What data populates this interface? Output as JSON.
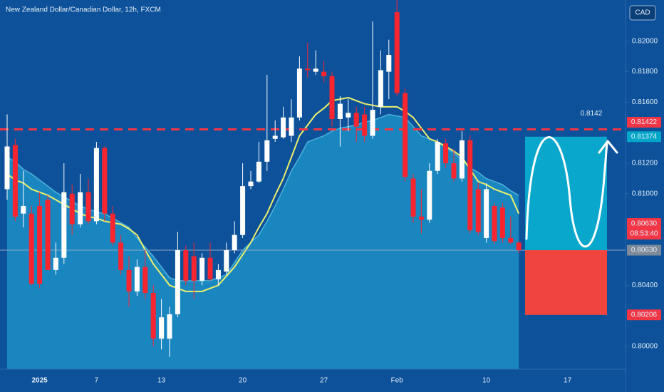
{
  "chart_data": {
    "type": "candlestick",
    "title": "New Zealand Dollar/Canadian Dollar, 12h, FXCM",
    "currency": "CAD",
    "categories": [
      null,
      null,
      null,
      null,
      "2025",
      null,
      null,
      null,
      null,
      null,
      null,
      "7",
      null,
      null,
      null,
      null,
      null,
      null,
      null,
      "13",
      null,
      null,
      null,
      null,
      null,
      null,
      null,
      null,
      null,
      "20",
      null,
      null,
      null,
      null,
      null,
      null,
      null,
      null,
      null,
      "27",
      null,
      null,
      null,
      null,
      null,
      null,
      null,
      null,
      "Feb",
      null,
      null,
      null,
      null,
      null,
      null,
      null,
      null,
      null,
      null,
      "10",
      null,
      null,
      null,
      null,
      null,
      null,
      null,
      null,
      null,
      "17",
      null,
      null,
      null,
      null,
      null,
      null
    ],
    "open": [
      0.8103,
      0.8132,
      0.8087,
      0.8087,
      0.8092,
      0.8096,
      0.805,
      0.8058,
      0.81,
      0.808,
      0.8101,
      0.8082,
      0.813,
      0.8087,
      0.8068,
      0.805,
      0.8036,
      0.8052,
      0.8035,
      0.8005,
      0.8005,
      0.8021,
      0.8063,
      0.8059,
      0.8043,
      0.8058,
      0.8044,
      0.8049,
      0.8063,
      0.8073,
      0.8105,
      0.8108,
      0.8121,
      0.8136,
      0.8137,
      0.8138,
      0.815,
      0.8182,
      0.818,
      0.818,
      0.8177,
      0.8149,
      0.815,
      0.8153,
      0.8152,
      0.8138,
      0.8157,
      0.818,
      0.8219,
      0.8166,
      0.811,
      0.8085,
      0.8083,
      0.8115,
      0.8133,
      0.812,
      0.811,
      0.8135,
      0.8103,
      0.8071,
      0.8092,
      0.8091,
      0.8071,
      0.8068,
      null,
      null,
      null,
      null,
      null,
      null,
      null,
      null,
      null,
      null,
      null,
      null
    ],
    "high": [
      0.8152,
      0.8136,
      0.8115,
      0.8092,
      0.8101,
      0.8099,
      0.8068,
      0.812,
      0.8106,
      0.8113,
      0.811,
      0.8134,
      0.8131,
      0.8092,
      0.8073,
      0.8059,
      0.8057,
      0.8063,
      0.804,
      0.8031,
      0.8026,
      0.8075,
      0.8066,
      0.8068,
      0.8061,
      0.8068,
      0.8054,
      0.8068,
      0.8082,
      0.812,
      0.8115,
      0.8134,
      0.8178,
      0.8148,
      0.8157,
      0.8162,
      0.819,
      0.8199,
      0.8194,
      0.8187,
      0.818,
      0.8164,
      0.8162,
      0.8157,
      0.8157,
      0.8213,
      0.8194,
      0.8201,
      0.8227,
      0.8169,
      0.8113,
      0.8103,
      0.812,
      0.8136,
      0.8136,
      0.8129,
      0.8141,
      0.8138,
      0.8107,
      0.8107,
      0.8094,
      0.8094,
      0.8085,
      0.8069,
      null,
      null,
      null,
      null,
      null,
      null,
      null,
      null,
      null,
      null,
      null,
      null
    ],
    "low": [
      0.8096,
      0.8082,
      0.8078,
      0.804,
      0.8038,
      0.805,
      0.8047,
      0.8054,
      0.8073,
      0.8078,
      0.808,
      0.808,
      0.8082,
      0.8066,
      0.8047,
      0.8026,
      0.8033,
      0.8031,
      0.8,
      0.7998,
      0.7993,
      0.8019,
      0.804,
      0.8031,
      0.804,
      0.8043,
      0.804,
      0.8047,
      0.8061,
      0.8071,
      0.8103,
      0.8107,
      0.8115,
      0.8134,
      0.8136,
      0.8134,
      0.8148,
      0.8176,
      0.8178,
      0.8173,
      0.8144,
      0.8131,
      0.8141,
      0.8134,
      0.8134,
      0.8136,
      0.8152,
      0.8162,
      0.8164,
      0.8108,
      0.8081,
      0.8074,
      0.8081,
      0.8113,
      0.8117,
      0.8108,
      0.8108,
      0.8074,
      0.8073,
      0.8068,
      0.8067,
      0.8068,
      0.8067,
      0.8061,
      null,
      null,
      null,
      null,
      null,
      null,
      null,
      null,
      null,
      null,
      null,
      null
    ],
    "close": [
      0.8131,
      0.8085,
      0.8092,
      0.8041,
      0.8041,
      0.805,
      0.8058,
      0.8101,
      0.808,
      0.8101,
      0.8082,
      0.813,
      0.8087,
      0.8068,
      0.805,
      0.8036,
      0.8052,
      0.8035,
      0.8005,
      0.8019,
      0.8021,
      0.8063,
      0.8043,
      0.8043,
      0.8058,
      0.8044,
      0.805,
      0.8063,
      0.8073,
      0.8105,
      0.8108,
      0.8121,
      0.8135,
      0.8138,
      0.815,
      0.815,
      0.8182,
      0.8181,
      0.8182,
      0.8177,
      0.8149,
      0.8159,
      0.8153,
      0.8144,
      0.8138,
      0.8155,
      0.8181,
      0.8191,
      0.8166,
      0.8111,
      0.8085,
      0.8083,
      0.8115,
      0.8134,
      0.812,
      0.811,
      0.8135,
      0.8076,
      0.8075,
      0.8103,
      0.8069,
      0.8071,
      0.8068,
      0.8063,
      null,
      null,
      null,
      null,
      null,
      null,
      null,
      null,
      null,
      null,
      null,
      null
    ],
    "up_color": "#ffffff",
    "down_color": "#f7252f",
    "series": [
      {
        "type": "area",
        "color": "#1a86c0",
        "values": [
          0.8124,
          0.8121,
          0.8116,
          0.8113,
          0.8109,
          0.8105,
          0.8101,
          0.8098,
          0.8095,
          0.8092,
          0.809,
          0.8088,
          0.8087,
          0.8084,
          0.8081,
          0.8078,
          0.8071,
          0.8065,
          0.8059,
          0.8052,
          0.8045,
          0.8043,
          0.8043,
          0.8043,
          0.8043,
          0.8043,
          0.8045,
          0.8047,
          0.8055,
          0.8063,
          0.8068,
          0.8073,
          0.8082,
          0.8092,
          0.8103,
          0.8115,
          0.8124,
          0.8134,
          0.8136,
          0.8138,
          0.8141,
          0.8143,
          0.8144,
          0.8145,
          0.8147,
          0.8148,
          0.815,
          0.8152,
          0.8151,
          0.815,
          0.8144,
          0.8138,
          0.8136,
          0.8134,
          0.813,
          0.8127,
          0.8122,
          0.8117,
          0.8114,
          0.811,
          0.8108,
          0.8106,
          0.8102,
          0.8099,
          null,
          null,
          null,
          null,
          null,
          null,
          null,
          null,
          null,
          null,
          null,
          null
        ]
      },
      {
        "type": "line",
        "color": "#ecf06a",
        "values": [
          0.8113,
          0.8109,
          0.8107,
          0.8103,
          0.8101,
          0.8099,
          0.8096,
          0.8093,
          0.809,
          0.8087,
          0.8085,
          0.8084,
          0.8082,
          0.8081,
          0.808,
          0.8077,
          0.8073,
          0.8063,
          0.8054,
          0.8047,
          0.804,
          0.8038,
          0.8036,
          0.8036,
          0.8036,
          0.8038,
          0.804,
          0.8046,
          0.8052,
          0.806,
          0.8068,
          0.8078,
          0.8087,
          0.8099,
          0.811,
          0.8124,
          0.8138,
          0.8145,
          0.8152,
          0.8156,
          0.8161,
          0.8162,
          0.8163,
          0.8161,
          0.8159,
          0.8158,
          0.8157,
          0.8157,
          0.8157,
          0.8154,
          0.815,
          0.8143,
          0.8136,
          0.8134,
          0.8131,
          0.8128,
          0.8124,
          0.8116,
          0.8108,
          0.8106,
          0.8103,
          0.8101,
          0.8099,
          0.8087,
          null,
          null,
          null,
          null,
          null,
          null,
          null,
          null,
          null,
          null,
          null,
          null
        ]
      }
    ],
    "ylim": [
      0.7985,
      0.8227
    ],
    "yticks": [
      {
        "value": 0.82,
        "label": "0.82000"
      },
      {
        "value": 0.818,
        "label": "0.81800"
      },
      {
        "value": 0.816,
        "label": "0.81600"
      },
      {
        "value": 0.812,
        "label": "0.81200"
      },
      {
        "value": 0.81,
        "label": "0.81000"
      },
      {
        "value": 0.804,
        "label": "0.80400"
      },
      {
        "value": 0.8,
        "label": "0.80000"
      }
    ],
    "grid": false,
    "level": {
      "value": 0.81422,
      "color": "#f23645"
    },
    "annotation": "0.8142",
    "price_labels": [
      {
        "value": 0.81422,
        "color": "#f23645"
      },
      {
        "value": 0.81374,
        "color": "#00a6c8"
      },
      {
        "value": 0.8063,
        "label": "0.80630",
        "countdown": "08:53:40",
        "color": "#f23645"
      },
      {
        "value": 0.8063,
        "label": "0.80630",
        "color": "#7d8a99"
      },
      {
        "value": 0.80206,
        "color": "#f23645"
      }
    ]
  }
}
